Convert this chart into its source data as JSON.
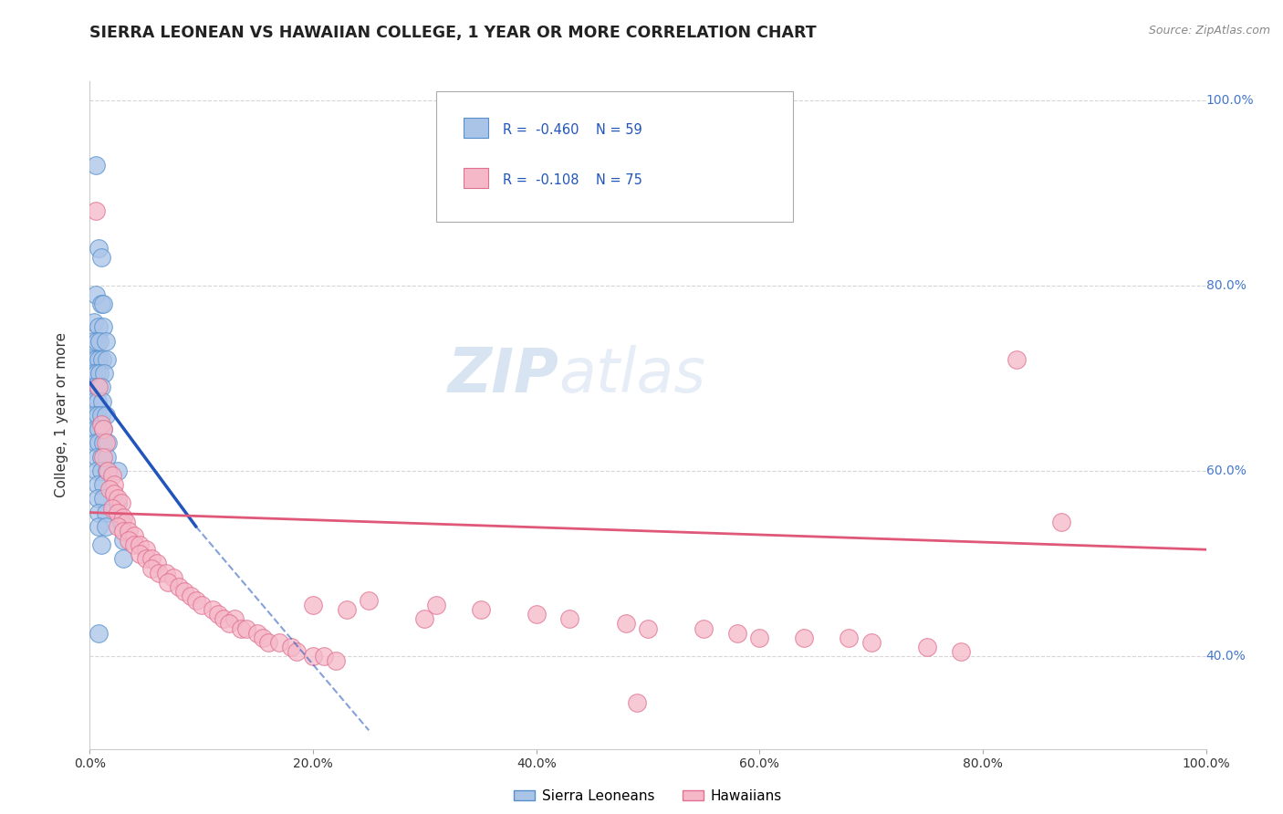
{
  "title": "SIERRA LEONEAN VS HAWAIIAN COLLEGE, 1 YEAR OR MORE CORRELATION CHART",
  "source": "Source: ZipAtlas.com",
  "ylabel": "College, 1 year or more",
  "xlim": [
    0.0,
    1.0
  ],
  "ylim": [
    0.3,
    1.02
  ],
  "xticks": [
    0.0,
    0.2,
    0.4,
    0.6,
    0.8,
    1.0
  ],
  "yticks": [
    0.4,
    0.6,
    0.8,
    1.0
  ],
  "xtick_labels": [
    "0.0%",
    "20.0%",
    "40.0%",
    "60.0%",
    "80.0%",
    "100.0%"
  ],
  "ytick_labels_right": [
    "40.0%",
    "60.0%",
    "80.0%",
    "100.0%"
  ],
  "background_color": "#ffffff",
  "grid_color": "#cccccc",
  "title_color": "#222222",
  "title_fontsize": 12.5,
  "sl_color": "#aac4e8",
  "sl_edge_color": "#5590cc",
  "hw_color": "#f5b8c8",
  "hw_edge_color": "#e07090",
  "sl_line_color": "#2255bb",
  "hw_line_color": "#e05878",
  "watermark_zip_color": "#c8d8ec",
  "watermark_atlas_color": "#b8c8d8",
  "sl_scatter": [
    [
      0.005,
      0.93
    ],
    [
      0.008,
      0.84
    ],
    [
      0.01,
      0.83
    ],
    [
      0.005,
      0.79
    ],
    [
      0.01,
      0.78
    ],
    [
      0.012,
      0.78
    ],
    [
      0.004,
      0.76
    ],
    [
      0.008,
      0.755
    ],
    [
      0.012,
      0.755
    ],
    [
      0.003,
      0.74
    ],
    [
      0.006,
      0.74
    ],
    [
      0.009,
      0.74
    ],
    [
      0.014,
      0.74
    ],
    [
      0.003,
      0.72
    ],
    [
      0.005,
      0.72
    ],
    [
      0.008,
      0.72
    ],
    [
      0.011,
      0.72
    ],
    [
      0.015,
      0.72
    ],
    [
      0.003,
      0.705
    ],
    [
      0.006,
      0.705
    ],
    [
      0.009,
      0.705
    ],
    [
      0.013,
      0.705
    ],
    [
      0.004,
      0.69
    ],
    [
      0.007,
      0.69
    ],
    [
      0.01,
      0.69
    ],
    [
      0.004,
      0.675
    ],
    [
      0.007,
      0.675
    ],
    [
      0.011,
      0.675
    ],
    [
      0.004,
      0.66
    ],
    [
      0.007,
      0.66
    ],
    [
      0.01,
      0.66
    ],
    [
      0.014,
      0.66
    ],
    [
      0.005,
      0.645
    ],
    [
      0.008,
      0.645
    ],
    [
      0.012,
      0.645
    ],
    [
      0.005,
      0.63
    ],
    [
      0.008,
      0.63
    ],
    [
      0.012,
      0.63
    ],
    [
      0.016,
      0.63
    ],
    [
      0.006,
      0.615
    ],
    [
      0.01,
      0.615
    ],
    [
      0.015,
      0.615
    ],
    [
      0.006,
      0.6
    ],
    [
      0.01,
      0.6
    ],
    [
      0.015,
      0.6
    ],
    [
      0.007,
      0.585
    ],
    [
      0.012,
      0.585
    ],
    [
      0.007,
      0.57
    ],
    [
      0.012,
      0.57
    ],
    [
      0.008,
      0.555
    ],
    [
      0.014,
      0.555
    ],
    [
      0.008,
      0.54
    ],
    [
      0.014,
      0.54
    ],
    [
      0.01,
      0.52
    ],
    [
      0.025,
      0.6
    ],
    [
      0.025,
      0.565
    ],
    [
      0.028,
      0.545
    ],
    [
      0.03,
      0.525
    ],
    [
      0.03,
      0.505
    ],
    [
      0.008,
      0.425
    ]
  ],
  "hw_scatter": [
    [
      0.005,
      0.88
    ],
    [
      0.008,
      0.69
    ],
    [
      0.01,
      0.65
    ],
    [
      0.012,
      0.645
    ],
    [
      0.014,
      0.63
    ],
    [
      0.012,
      0.615
    ],
    [
      0.016,
      0.6
    ],
    [
      0.02,
      0.595
    ],
    [
      0.022,
      0.585
    ],
    [
      0.018,
      0.58
    ],
    [
      0.022,
      0.575
    ],
    [
      0.025,
      0.57
    ],
    [
      0.028,
      0.565
    ],
    [
      0.02,
      0.56
    ],
    [
      0.025,
      0.555
    ],
    [
      0.03,
      0.55
    ],
    [
      0.032,
      0.545
    ],
    [
      0.025,
      0.54
    ],
    [
      0.03,
      0.535
    ],
    [
      0.035,
      0.535
    ],
    [
      0.04,
      0.53
    ],
    [
      0.035,
      0.525
    ],
    [
      0.04,
      0.52
    ],
    [
      0.045,
      0.52
    ],
    [
      0.05,
      0.515
    ],
    [
      0.045,
      0.51
    ],
    [
      0.05,
      0.505
    ],
    [
      0.055,
      0.505
    ],
    [
      0.06,
      0.5
    ],
    [
      0.055,
      0.495
    ],
    [
      0.062,
      0.49
    ],
    [
      0.068,
      0.49
    ],
    [
      0.075,
      0.485
    ],
    [
      0.07,
      0.48
    ],
    [
      0.08,
      0.475
    ],
    [
      0.085,
      0.47
    ],
    [
      0.09,
      0.465
    ],
    [
      0.095,
      0.46
    ],
    [
      0.1,
      0.455
    ],
    [
      0.11,
      0.45
    ],
    [
      0.115,
      0.445
    ],
    [
      0.12,
      0.44
    ],
    [
      0.13,
      0.44
    ],
    [
      0.125,
      0.435
    ],
    [
      0.135,
      0.43
    ],
    [
      0.14,
      0.43
    ],
    [
      0.15,
      0.425
    ],
    [
      0.155,
      0.42
    ],
    [
      0.16,
      0.415
    ],
    [
      0.17,
      0.415
    ],
    [
      0.18,
      0.41
    ],
    [
      0.185,
      0.405
    ],
    [
      0.2,
      0.4
    ],
    [
      0.21,
      0.4
    ],
    [
      0.22,
      0.395
    ],
    [
      0.2,
      0.455
    ],
    [
      0.23,
      0.45
    ],
    [
      0.3,
      0.44
    ],
    [
      0.25,
      0.46
    ],
    [
      0.31,
      0.455
    ],
    [
      0.35,
      0.45
    ],
    [
      0.4,
      0.445
    ],
    [
      0.43,
      0.44
    ],
    [
      0.48,
      0.435
    ],
    [
      0.5,
      0.43
    ],
    [
      0.55,
      0.43
    ],
    [
      0.58,
      0.425
    ],
    [
      0.6,
      0.42
    ],
    [
      0.64,
      0.42
    ],
    [
      0.68,
      0.42
    ],
    [
      0.7,
      0.415
    ],
    [
      0.75,
      0.41
    ],
    [
      0.78,
      0.405
    ],
    [
      0.83,
      0.72
    ],
    [
      0.87,
      0.545
    ],
    [
      0.49,
      0.35
    ]
  ],
  "sl_line": {
    "x0": 0.0,
    "y0": 0.695,
    "x1": 0.095,
    "y1": 0.54,
    "dash_x1": 0.25,
    "dash_y1": 0.32
  },
  "hw_line": {
    "x0": 0.0,
    "y0": 0.555,
    "x1": 1.0,
    "y1": 0.515
  }
}
